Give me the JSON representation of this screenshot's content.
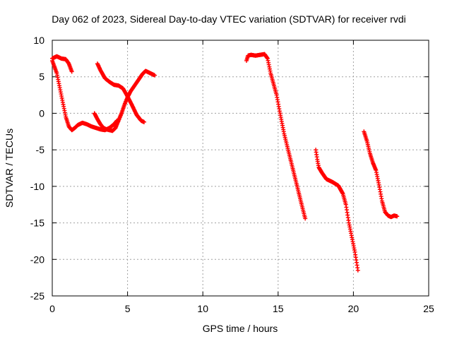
{
  "chart_data": {
    "type": "scatter",
    "title": "Day 062 of 2023, Sidereal Day-to-day VTEC variation (SDTVAR) for receiver rvdi",
    "xlabel": "GPS time / hours",
    "ylabel": "SDTVAR / TECUs",
    "xlim": [
      0,
      25
    ],
    "ylim": [
      -25,
      10
    ],
    "xticks": [
      "0",
      "5",
      "10",
      "15",
      "20",
      "25"
    ],
    "yticks": [
      "10",
      "5",
      "0",
      "-5",
      "-10",
      "-15",
      "-20",
      "-25"
    ],
    "grid": true,
    "marker": "+",
    "color": "#ff0000",
    "series": [
      {
        "x": [
          0.0,
          0.3,
          0.5,
          0.7,
          0.9,
          1.1,
          1.3,
          1.5,
          1.7,
          2.0,
          2.3,
          2.6,
          2.9,
          3.2,
          3.5,
          3.8,
          4.1,
          4.3
        ],
        "y": [
          7.2,
          5.5,
          3.5,
          1.5,
          -0.5,
          -1.8,
          -2.3,
          -2.0,
          -1.6,
          -1.3,
          -1.5,
          -1.8,
          -2.0,
          -2.2,
          -2.3,
          -2.0,
          -1.5,
          -1.0
        ]
      },
      {
        "x": [
          0.0,
          0.3,
          0.6,
          0.9,
          1.1,
          1.3
        ],
        "y": [
          7.5,
          7.8,
          7.5,
          7.4,
          6.8,
          5.7
        ]
      },
      {
        "x": [
          2.8,
          3.0,
          3.2,
          3.4,
          3.6,
          3.8,
          4.0,
          4.2,
          4.4,
          4.6,
          4.8,
          5.0,
          5.2,
          5.5,
          5.8,
          6.0,
          6.2
        ],
        "y": [
          0.0,
          -0.8,
          -1.5,
          -2.0,
          -2.2,
          -2.3,
          -2.4,
          -2.0,
          -1.0,
          0.0,
          1.2,
          2.2,
          3.0,
          3.9,
          4.8,
          5.4,
          5.8
        ]
      },
      {
        "x": [
          6.2,
          6.4,
          6.6,
          6.8
        ],
        "y": [
          5.8,
          5.6,
          5.4,
          5.2
        ]
      },
      {
        "x": [
          3.0,
          3.2,
          3.5,
          3.8,
          4.1,
          4.4,
          4.7,
          5.0,
          5.3,
          5.6,
          5.9,
          6.1
        ],
        "y": [
          6.8,
          5.9,
          4.8,
          4.3,
          3.9,
          3.8,
          3.4,
          2.3,
          1.1,
          -0.2,
          -1.0,
          -1.2
        ]
      },
      {
        "x": [
          12.9,
          13.0,
          13.2,
          13.5,
          13.8,
          14.1,
          14.3,
          14.5,
          14.7,
          14.9,
          15.1,
          15.4,
          15.7,
          16.0,
          16.3,
          16.6,
          16.8
        ],
        "y": [
          7.2,
          7.9,
          8.0,
          7.9,
          8.0,
          8.1,
          7.5,
          5.5,
          4.0,
          2.5,
          0.3,
          -2.8,
          -5.3,
          -7.8,
          -10.3,
          -12.8,
          -14.4
        ]
      },
      {
        "x": [
          17.5,
          17.6,
          17.7,
          17.9,
          18.2,
          18.6,
          19.0,
          19.3,
          19.5,
          19.7,
          19.9,
          20.1,
          20.3
        ],
        "y": [
          -5.0,
          -6.3,
          -7.4,
          -8.1,
          -9.0,
          -9.4,
          -9.9,
          -11.0,
          -12.5,
          -15.0,
          -17.0,
          -19.0,
          -21.5
        ]
      },
      {
        "x": [
          20.7,
          20.9,
          21.1,
          21.3,
          21.5,
          21.7,
          21.9,
          22.1,
          22.3,
          22.5,
          22.7,
          22.9
        ],
        "y": [
          -2.5,
          -3.8,
          -5.5,
          -6.8,
          -7.8,
          -9.8,
          -12.0,
          -13.5,
          -14.0,
          -14.2,
          -14.0,
          -14.1
        ]
      }
    ]
  }
}
